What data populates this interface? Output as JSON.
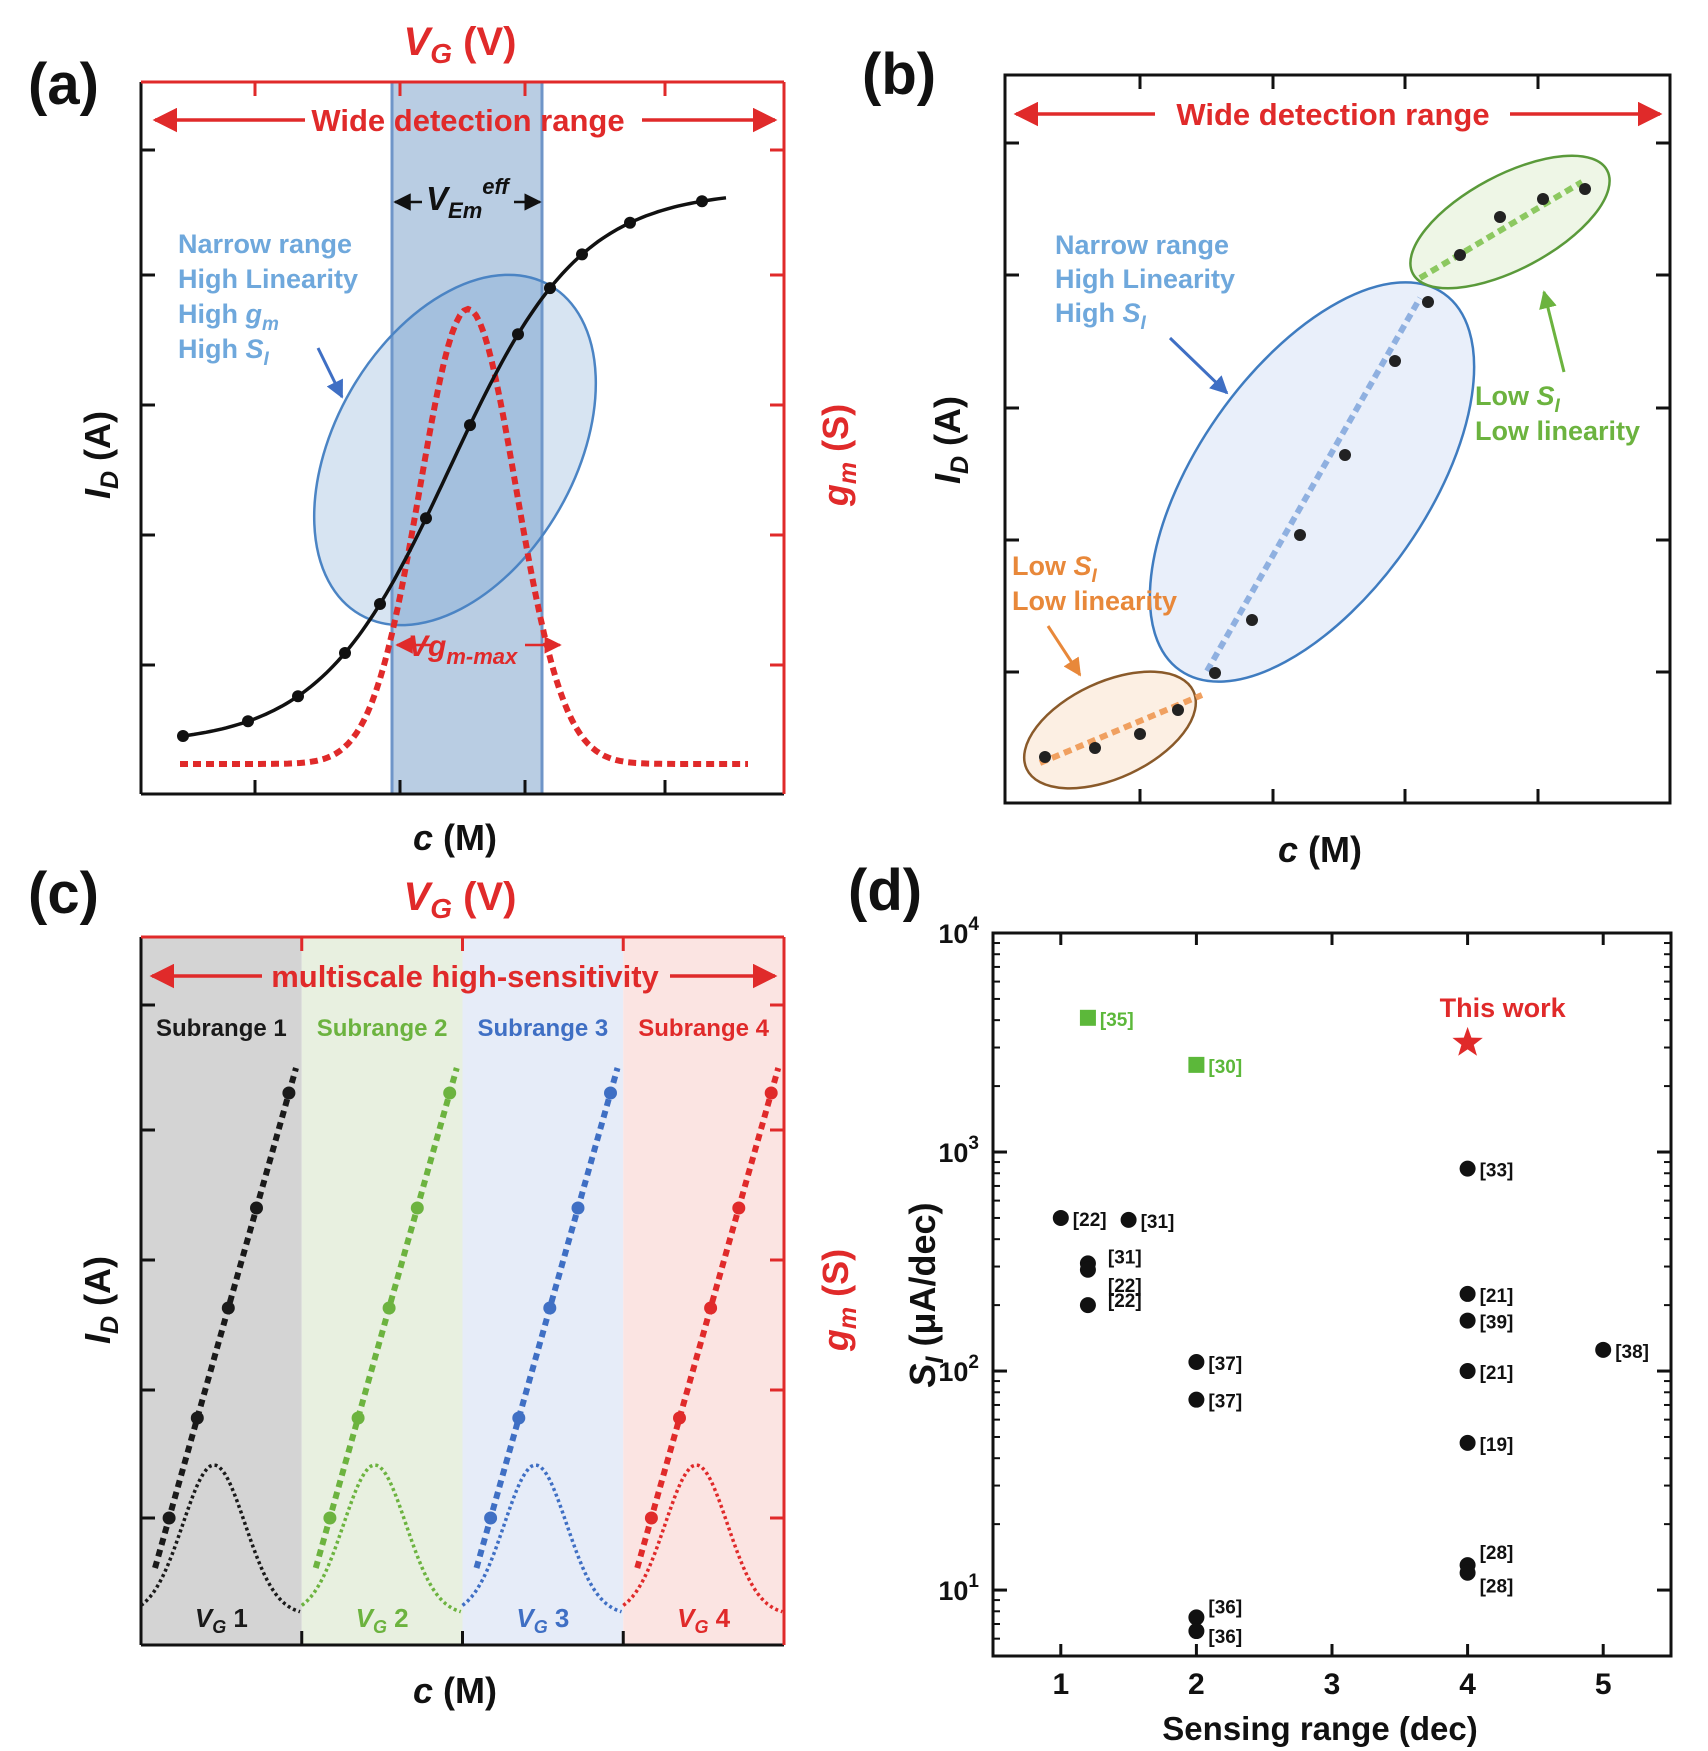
{
  "panels": {
    "a": {
      "letter": "(a)",
      "top_axis": {
        "base": "V",
        "sub": "G",
        "unit": " (V)"
      },
      "wide_range": "Wide detection range",
      "vem": {
        "base": "V",
        "sub": "Em",
        "sup": "eff"
      },
      "vgm": {
        "base": "Vg",
        "sub": "m-max"
      },
      "notes": {
        "l1": "Narrow range",
        "l2": "High Linearity",
        "l3": {
          "text": "High ",
          "base": "g",
          "sub": "m"
        },
        "l4": {
          "text": "High ",
          "base": "S",
          "sub": "I"
        }
      },
      "ylabel": {
        "base": "I",
        "sub": "D",
        "unit": " (A)"
      },
      "ylabel_right": {
        "base": "g",
        "sub": "m",
        "unit": " (S)"
      },
      "xlabel": {
        "base": "c",
        "unit": " (M)"
      }
    },
    "b": {
      "letter": "(b)",
      "wide_range": "Wide detection range",
      "blue_note": {
        "l1": "Narrow range",
        "l2": "High Linearity",
        "l3": {
          "text": "High ",
          "base": "S",
          "sub": "I"
        }
      },
      "green_note": {
        "l1": {
          "text": "Low ",
          "base": "S",
          "sub": "I"
        },
        "l2": "Low linearity"
      },
      "orange_note": {
        "l1": {
          "text": "Low ",
          "base": "S",
          "sub": "I"
        },
        "l2": "Low linearity"
      },
      "ylabel": {
        "base": "I",
        "sub": "D",
        "unit": " (A)"
      },
      "xlabel": {
        "base": "c",
        "unit": " (M)"
      }
    },
    "c": {
      "letter": "(c)",
      "top_axis": {
        "base": "V",
        "sub": "G",
        "unit": " (V)"
      },
      "banner": "multiscale high-sensitivity",
      "subranges": [
        {
          "label": "Subrange 1",
          "vg": {
            "base": "V",
            "sub": "G",
            "num": " 1"
          },
          "color": "#1a1a1a",
          "bg": "#d4d4d4"
        },
        {
          "label": "Subrange 2",
          "vg": {
            "base": "V",
            "sub": "G",
            "num": " 2"
          },
          "color": "#6cb33f",
          "bg": "#e8f0e0"
        },
        {
          "label": "Subrange 3",
          "vg": {
            "base": "V",
            "sub": "G",
            "num": " 3"
          },
          "color": "#3f6fc4",
          "bg": "#e6ecf8"
        },
        {
          "label": "Subrange 4",
          "vg": {
            "base": "V",
            "sub": "G",
            "num": " 4"
          },
          "color": "#e02a2a",
          "bg": "#fbe4e2"
        }
      ],
      "ylabel": {
        "base": "I",
        "sub": "D",
        "unit": " (A)"
      },
      "ylabel_right": {
        "base": "g",
        "sub": "m",
        "unit": " (S)"
      },
      "xlabel": {
        "base": "c",
        "unit": " (M)"
      }
    },
    "d": {
      "letter": "(d)",
      "this_work": "This work",
      "ylabel": {
        "base": "S",
        "sub": "I",
        "unit": " (μA/dec)"
      },
      "ytick_sup": [
        "4",
        "3",
        "2",
        "1"
      ],
      "ytick_base": "10"
    }
  },
  "colors": {
    "red": "#e02a2a",
    "blue_text": "#6fa8dc",
    "green_text": "#6cb33f",
    "orange_text": "#e8883a",
    "black": "#1a1a1a",
    "ref_green": "#5cb83a"
  },
  "chart_data": [
    {
      "type": "scatter",
      "title": "",
      "xlabel": "Sensing range (dec)",
      "ylabel": "S_I (μA/dec)",
      "xlim": [
        0.5,
        5.5
      ],
      "ylim": [
        5,
        10000
      ],
      "yscale": "log",
      "x_ticks": [
        "1",
        "2",
        "3",
        "4",
        "5"
      ],
      "x_tick_values": [
        1,
        2,
        3,
        4,
        5
      ],
      "y_tick_values": [
        10000,
        1000,
        100,
        10
      ],
      "points": [
        {
          "x": 1.2,
          "y": 4100,
          "label": "[35]",
          "marker": "square",
          "color": "#5cb83a"
        },
        {
          "x": 2.0,
          "y": 2500,
          "label": "[30]",
          "marker": "square",
          "color": "#5cb83a"
        },
        {
          "x": 4.0,
          "y": 3150,
          "label": "This work",
          "marker": "star",
          "color": "#e02a2a"
        },
        {
          "x": 4.0,
          "y": 840,
          "label": "[33]",
          "marker": "circle",
          "color": "#111111"
        },
        {
          "x": 1.0,
          "y": 500,
          "label": "[22]",
          "marker": "circle",
          "color": "#111111"
        },
        {
          "x": 1.5,
          "y": 490,
          "label": "[31]",
          "marker": "circle",
          "color": "#111111"
        },
        {
          "x": 1.2,
          "y": 310,
          "label": "[31]",
          "marker": "circle",
          "color": "#111111"
        },
        {
          "x": 1.2,
          "y": 290,
          "label": "[22]",
          "marker": "circle",
          "color": "#111111"
        },
        {
          "x": 1.2,
          "y": 200,
          "label": "[22]",
          "marker": "circle",
          "color": "#111111"
        },
        {
          "x": 4.0,
          "y": 225,
          "label": "[21]",
          "marker": "circle",
          "color": "#111111"
        },
        {
          "x": 4.0,
          "y": 170,
          "label": "[39]",
          "marker": "circle",
          "color": "#111111"
        },
        {
          "x": 5.0,
          "y": 125,
          "label": "[38]",
          "marker": "circle",
          "color": "#111111"
        },
        {
          "x": 2.0,
          "y": 110,
          "label": "[37]",
          "marker": "circle",
          "color": "#111111"
        },
        {
          "x": 4.0,
          "y": 100,
          "label": "[21]",
          "marker": "circle",
          "color": "#111111"
        },
        {
          "x": 2.0,
          "y": 74,
          "label": "[37]",
          "marker": "circle",
          "color": "#111111"
        },
        {
          "x": 4.0,
          "y": 47,
          "label": "[19]",
          "marker": "circle",
          "color": "#111111"
        },
        {
          "x": 4.0,
          "y": 13,
          "label": "[28]",
          "marker": "circle",
          "color": "#111111"
        },
        {
          "x": 4.0,
          "y": 12,
          "label": "[28]",
          "marker": "circle",
          "color": "#111111"
        },
        {
          "x": 2.0,
          "y": 7.5,
          "label": "[36]",
          "marker": "circle",
          "color": "#111111"
        },
        {
          "x": 2.0,
          "y": 6.5,
          "label": "[36]",
          "marker": "circle",
          "color": "#111111"
        }
      ]
    }
  ]
}
